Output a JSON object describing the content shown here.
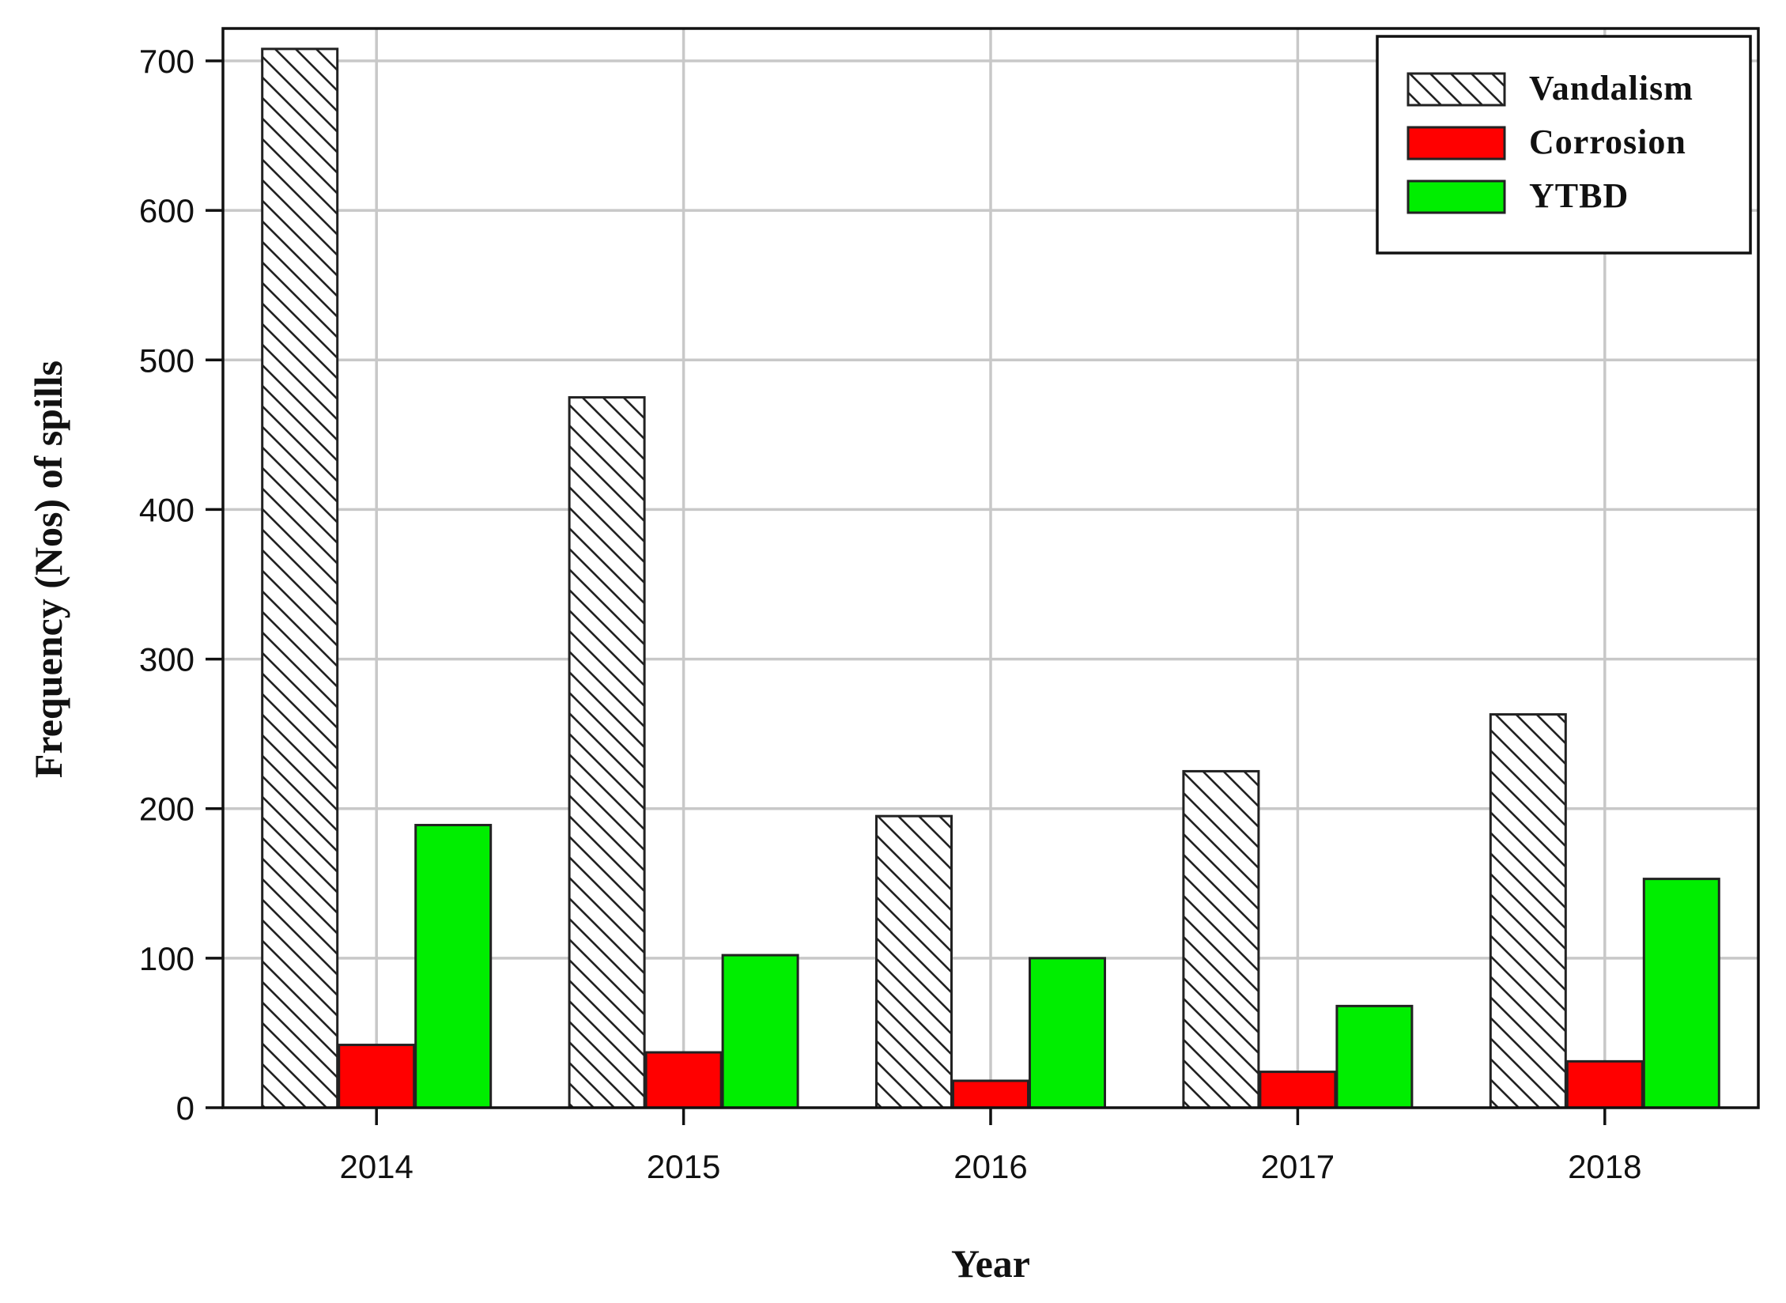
{
  "chart_data": {
    "type": "bar",
    "categories": [
      "2014",
      "2015",
      "2016",
      "2017",
      "2018"
    ],
    "series": [
      {
        "name": "Vandalism",
        "values": [
          708,
          475,
          195,
          225,
          263
        ],
        "color": "#ffffff",
        "pattern": "diagonal-hatch"
      },
      {
        "name": "Corrosion",
        "values": [
          42,
          37,
          18,
          24,
          31
        ],
        "color": "#ff0000"
      },
      {
        "name": "YTBD",
        "values": [
          189,
          102,
          100,
          68,
          153
        ],
        "color": "#00ee00"
      }
    ],
    "xlabel": "Year",
    "ylabel": "Frequency (Nos) of spills",
    "ylim": [
      0,
      700
    ],
    "yticks": [
      0,
      100,
      200,
      300,
      400,
      500,
      600,
      700
    ],
    "grid": true,
    "legend_position": "top-right"
  }
}
